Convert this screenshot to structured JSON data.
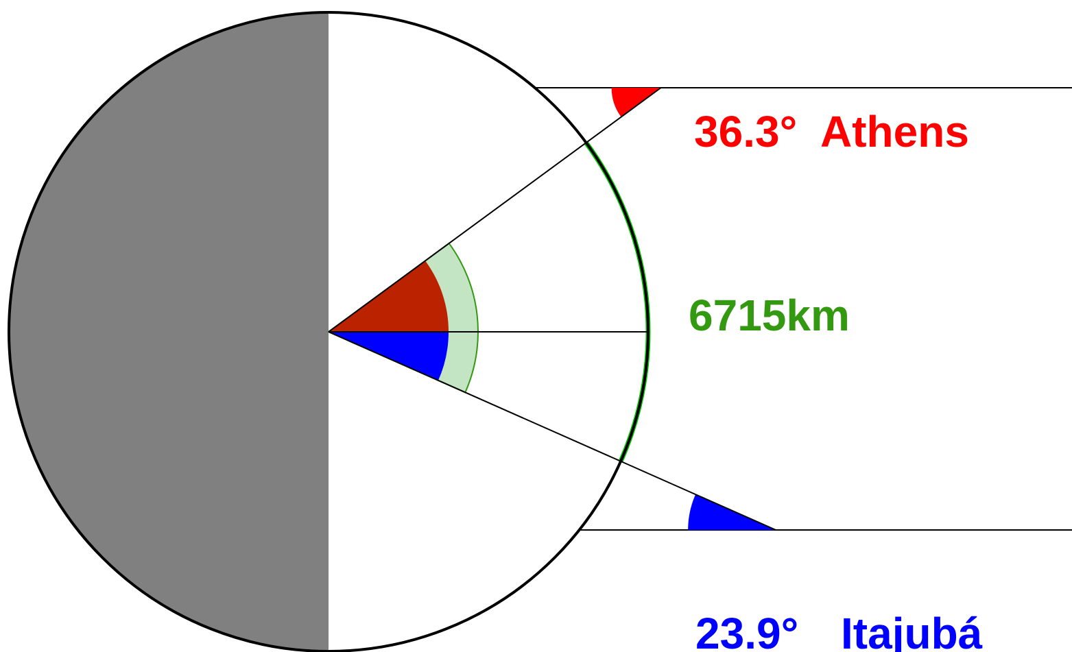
{
  "athens": {
    "angle_label": "36.3°",
    "city_label": "Athens",
    "angle_deg": 36.3,
    "color": "#ff0000",
    "inner_color": "#bb2200"
  },
  "itajuba": {
    "angle_label": "23.9°",
    "city_label": "Itajubá",
    "angle_deg": 23.9,
    "color": "#0000ff"
  },
  "distance": {
    "label": "6715km",
    "color": "#339911",
    "arc_color": "#00cc00",
    "band_color": "#c3e5c3"
  },
  "earth": {
    "night_color": "#808080",
    "day_color": "#ffffff",
    "outline_color": "#000000"
  }
}
